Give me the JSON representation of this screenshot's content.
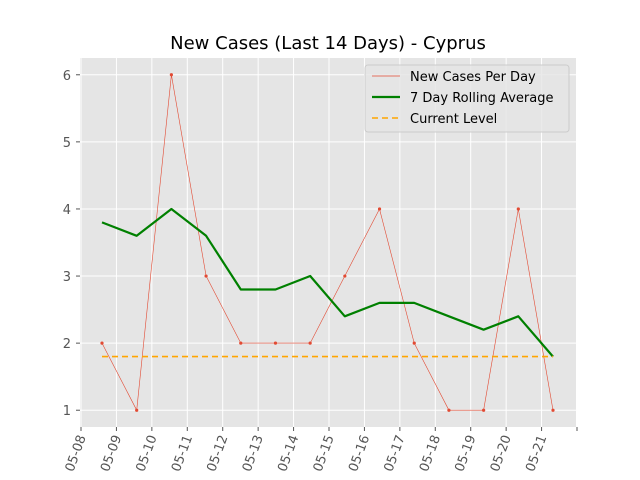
{
  "chart_data": {
    "type": "line",
    "title": "New Cases (Last 14 Days) - Cyprus",
    "xlabel": "",
    "ylabel": "",
    "x": [
      "05-08",
      "05-09",
      "05-10",
      "05-11",
      "05-12",
      "05-13",
      "05-14",
      "05-15",
      "05-16",
      "05-17",
      "05-18",
      "05-19",
      "05-20",
      "05-21"
    ],
    "x_ticks": [
      "05-08",
      "05-09",
      "05-10",
      "05-11",
      "05-12",
      "05-13",
      "05-14",
      "05-15",
      "05-16",
      "05-17",
      "05-18",
      "05-19",
      "05-20",
      "05-21"
    ],
    "y_ticks": [
      1,
      2,
      3,
      4,
      5,
      6
    ],
    "ylim": [
      0.75,
      6.25
    ],
    "grid": true,
    "legend_position": "top-right",
    "series": [
      {
        "name": "New Cases Per Day",
        "style": "thin-line-with-markers",
        "color": "#e24a33",
        "values": [
          2,
          1,
          6,
          3,
          2,
          2,
          2,
          3,
          4,
          2,
          1,
          1,
          4,
          1
        ]
      },
      {
        "name": "7 Day Rolling Average",
        "style": "thick-line",
        "color": "#008000",
        "values": [
          3.8,
          3.6,
          4.0,
          3.6,
          2.8,
          2.8,
          3.0,
          2.4,
          2.6,
          2.6,
          2.4,
          2.2,
          2.4,
          1.8
        ]
      },
      {
        "name": "Current Level",
        "style": "dashed-line",
        "color": "#ffa500",
        "values": [
          1.8,
          1.8,
          1.8,
          1.8,
          1.8,
          1.8,
          1.8,
          1.8,
          1.8,
          1.8,
          1.8,
          1.8,
          1.8,
          1.8
        ]
      }
    ]
  },
  "colors": {
    "plot_background": "#e5e5e5",
    "grid": "#ffffff",
    "tick_text": "#555555"
  }
}
